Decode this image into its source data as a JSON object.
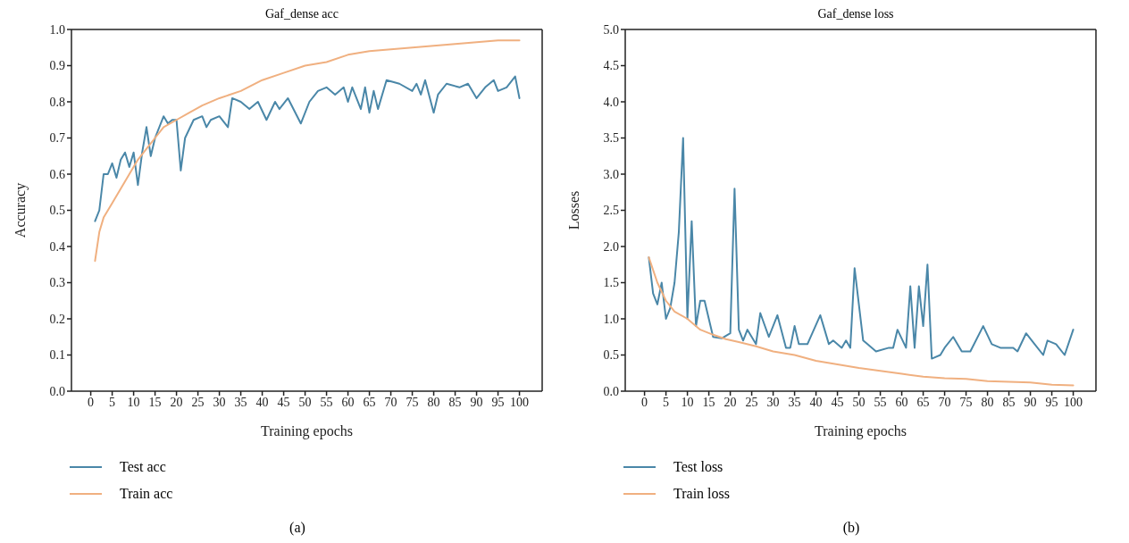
{
  "chart_data": [
    {
      "type": "line",
      "title": "Gaf_dense acc",
      "xlabel": "Training epochs",
      "ylabel": "Accuracy",
      "xlim": [
        -4.5,
        105.3
      ],
      "xticks": [
        0,
        5,
        10,
        15,
        20,
        25,
        30,
        35,
        40,
        45,
        50,
        55,
        60,
        65,
        70,
        75,
        80,
        85,
        90,
        95,
        100
      ],
      "ylim": [
        0,
        1
      ],
      "yticks": [
        {
          "value": 0,
          "label": "0.0"
        },
        0.1,
        0.2,
        0.3,
        0.4,
        0.5,
        0.6,
        0.7,
        0.8,
        0.9,
        {
          "value": 1,
          "label": "1.0"
        }
      ],
      "grid": false,
      "legend": "bottom",
      "marker": "none",
      "line_style": "solid",
      "annotations": [
        "(a)"
      ],
      "series": [
        {
          "name": "Test acc",
          "color": "#4a87a8",
          "x": [
            1,
            2,
            3,
            4,
            5,
            6,
            7,
            8,
            9,
            10,
            11,
            12,
            13,
            14,
            15,
            17,
            18,
            19,
            20,
            21,
            22,
            24,
            26,
            27,
            28,
            30,
            32,
            33,
            35,
            37,
            39,
            41,
            43,
            44,
            46,
            49,
            51,
            53,
            55,
            57,
            59,
            60,
            61,
            63,
            64,
            65,
            66,
            67,
            69,
            72,
            75,
            76,
            77,
            78,
            80,
            81,
            83,
            86,
            88,
            90,
            92,
            94,
            95,
            97,
            99,
            100
          ],
          "values": [
            0.47,
            0.5,
            0.6,
            0.6,
            0.63,
            0.59,
            0.64,
            0.66,
            0.62,
            0.66,
            0.57,
            0.66,
            0.73,
            0.65,
            0.7,
            0.76,
            0.74,
            0.75,
            0.75,
            0.61,
            0.7,
            0.75,
            0.76,
            0.73,
            0.75,
            0.76,
            0.73,
            0.81,
            0.8,
            0.78,
            0.8,
            0.75,
            0.8,
            0.78,
            0.81,
            0.74,
            0.8,
            0.83,
            0.84,
            0.82,
            0.84,
            0.8,
            0.84,
            0.78,
            0.84,
            0.77,
            0.83,
            0.78,
            0.86,
            0.85,
            0.83,
            0.85,
            0.82,
            0.86,
            0.77,
            0.82,
            0.85,
            0.84,
            0.85,
            0.81,
            0.84,
            0.86,
            0.83,
            0.84,
            0.87,
            0.81
          ]
        },
        {
          "name": "Train acc",
          "color": "#f0b080",
          "x": [
            1,
            2,
            3,
            5,
            7,
            9,
            11,
            13,
            15,
            17,
            20,
            23,
            26,
            30,
            35,
            40,
            45,
            50,
            55,
            60,
            65,
            75,
            85,
            95,
            100
          ],
          "values": [
            0.36,
            0.44,
            0.48,
            0.52,
            0.56,
            0.6,
            0.64,
            0.67,
            0.7,
            0.73,
            0.75,
            0.77,
            0.79,
            0.81,
            0.83,
            0.86,
            0.88,
            0.9,
            0.91,
            0.93,
            0.94,
            0.95,
            0.96,
            0.97,
            0.97
          ]
        }
      ]
    },
    {
      "type": "line",
      "title": "Gaf_dense loss",
      "xlabel": "Training epochs",
      "ylabel": "Losses",
      "xlim": [
        -4.5,
        105.3
      ],
      "xticks": [
        0,
        5,
        10,
        15,
        20,
        25,
        30,
        35,
        40,
        45,
        50,
        55,
        60,
        65,
        70,
        75,
        80,
        85,
        90,
        95,
        100
      ],
      "ylim": [
        0,
        5
      ],
      "yticks": [
        {
          "value": 0,
          "label": "0.0"
        },
        0.5,
        {
          "value": 1,
          "label": "1.0"
        },
        1.5,
        {
          "value": 2,
          "label": "2.0"
        },
        2.5,
        {
          "value": 3,
          "label": "3.0"
        },
        3.5,
        {
          "value": 4,
          "label": "4.0"
        },
        4.5,
        {
          "value": 5,
          "label": "5.0"
        }
      ],
      "grid": false,
      "legend": "bottom",
      "marker": "none",
      "line_style": "solid",
      "annotations": [
        "(b)"
      ],
      "series": [
        {
          "name": "Test loss",
          "color": "#4a87a8",
          "x": [
            1,
            2,
            3,
            4,
            5,
            6,
            7,
            8,
            9,
            10,
            11,
            12,
            13,
            14,
            16,
            18,
            20,
            21,
            22,
            23,
            24,
            26,
            27,
            29,
            31,
            33,
            34,
            35,
            36,
            38,
            41,
            42,
            43,
            44,
            46,
            47,
            48,
            49,
            51,
            52,
            54,
            57,
            58,
            59,
            61,
            62,
            63,
            64,
            65,
            66,
            67,
            69,
            70,
            72,
            74,
            76,
            79,
            81,
            83,
            86,
            87,
            89,
            91,
            93,
            94,
            96,
            98,
            100
          ],
          "values": [
            1.85,
            1.35,
            1.2,
            1.5,
            1.0,
            1.15,
            1.5,
            2.2,
            3.5,
            1.0,
            2.35,
            0.9,
            1.25,
            1.25,
            0.75,
            0.73,
            0.8,
            2.8,
            0.85,
            0.7,
            0.85,
            0.65,
            1.08,
            0.75,
            1.05,
            0.6,
            0.6,
            0.9,
            0.65,
            0.65,
            1.05,
            0.85,
            0.65,
            0.7,
            0.6,
            0.7,
            0.6,
            1.7,
            0.7,
            0.65,
            0.55,
            0.6,
            0.6,
            0.85,
            0.6,
            1.45,
            0.6,
            1.45,
            0.9,
            1.75,
            0.45,
            0.5,
            0.6,
            0.75,
            0.55,
            0.55,
            0.9,
            0.65,
            0.6,
            0.6,
            0.55,
            0.8,
            0.65,
            0.5,
            0.7,
            0.65,
            0.5,
            0.85
          ]
        },
        {
          "name": "Train loss",
          "color": "#f0b080",
          "x": [
            1,
            3,
            5,
            7,
            10,
            13,
            16,
            19,
            22,
            26,
            30,
            35,
            40,
            45,
            50,
            55,
            60,
            65,
            70,
            75,
            80,
            85,
            90,
            95,
            100
          ],
          "values": [
            1.85,
            1.5,
            1.25,
            1.1,
            1.0,
            0.85,
            0.78,
            0.72,
            0.68,
            0.62,
            0.55,
            0.5,
            0.42,
            0.37,
            0.32,
            0.28,
            0.24,
            0.2,
            0.18,
            0.17,
            0.14,
            0.13,
            0.12,
            0.09,
            0.08
          ]
        }
      ]
    }
  ]
}
